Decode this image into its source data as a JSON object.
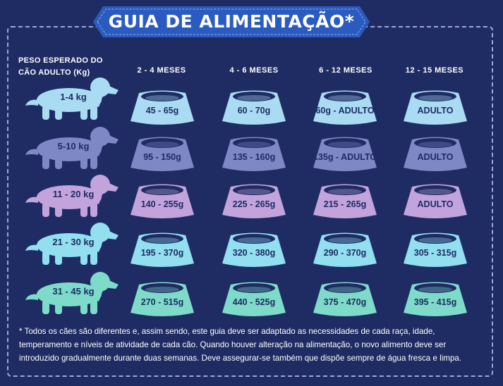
{
  "title": "GUIA DE ALIMENTAÇÃO*",
  "row_header": [
    "PESO ESPERADO DO",
    "CÃO ADULTO (Kg)"
  ],
  "columns": [
    "2 - 4 MESES",
    "4 - 6 MESES",
    "6 - 12 MESES",
    "12 - 15 MESES"
  ],
  "colors": {
    "background": "#1f2c63",
    "banner": "#2a5bc0",
    "rows": [
      "#a9dcf3",
      "#7e88c4",
      "#c3a3dc",
      "#92dff0",
      "#7edbc9"
    ]
  },
  "rows": [
    {
      "weight": "1-4 kg",
      "values": [
        "45 - 65g",
        "60 - 70g",
        "60g - ADULTO",
        "ADULTO"
      ]
    },
    {
      "weight": "5-10 kg",
      "values": [
        "95 - 150g",
        "135 - 160g",
        "135g - ADULTO",
        "ADULTO"
      ]
    },
    {
      "weight": "11 - 20 kg",
      "values": [
        "140 - 255g",
        "225 - 265g",
        "215 - 265g",
        "ADULTO"
      ]
    },
    {
      "weight": "21 - 30 kg",
      "values": [
        "195 - 370g",
        "320 - 380g",
        "290 - 370g",
        "305 - 315g"
      ]
    },
    {
      "weight": "31 - 45 kg",
      "values": [
        "270 - 515g",
        "440 - 525g",
        "375 - 470g",
        "395 - 415g"
      ]
    }
  ],
  "footnote": [
    "* Todos os cães são diferentes e, assim sendo, este guia deve ser adaptado as necessidades de cada raça, idade,",
    "temperamento e níveis de atividade de cada cão. Quando houver alteração na alimentação, o novo alimento deve ser",
    "introduzido gradualmente durante duas semanas. Deve assegurar-se também que dispõe sempre de água fresca e limpa."
  ]
}
